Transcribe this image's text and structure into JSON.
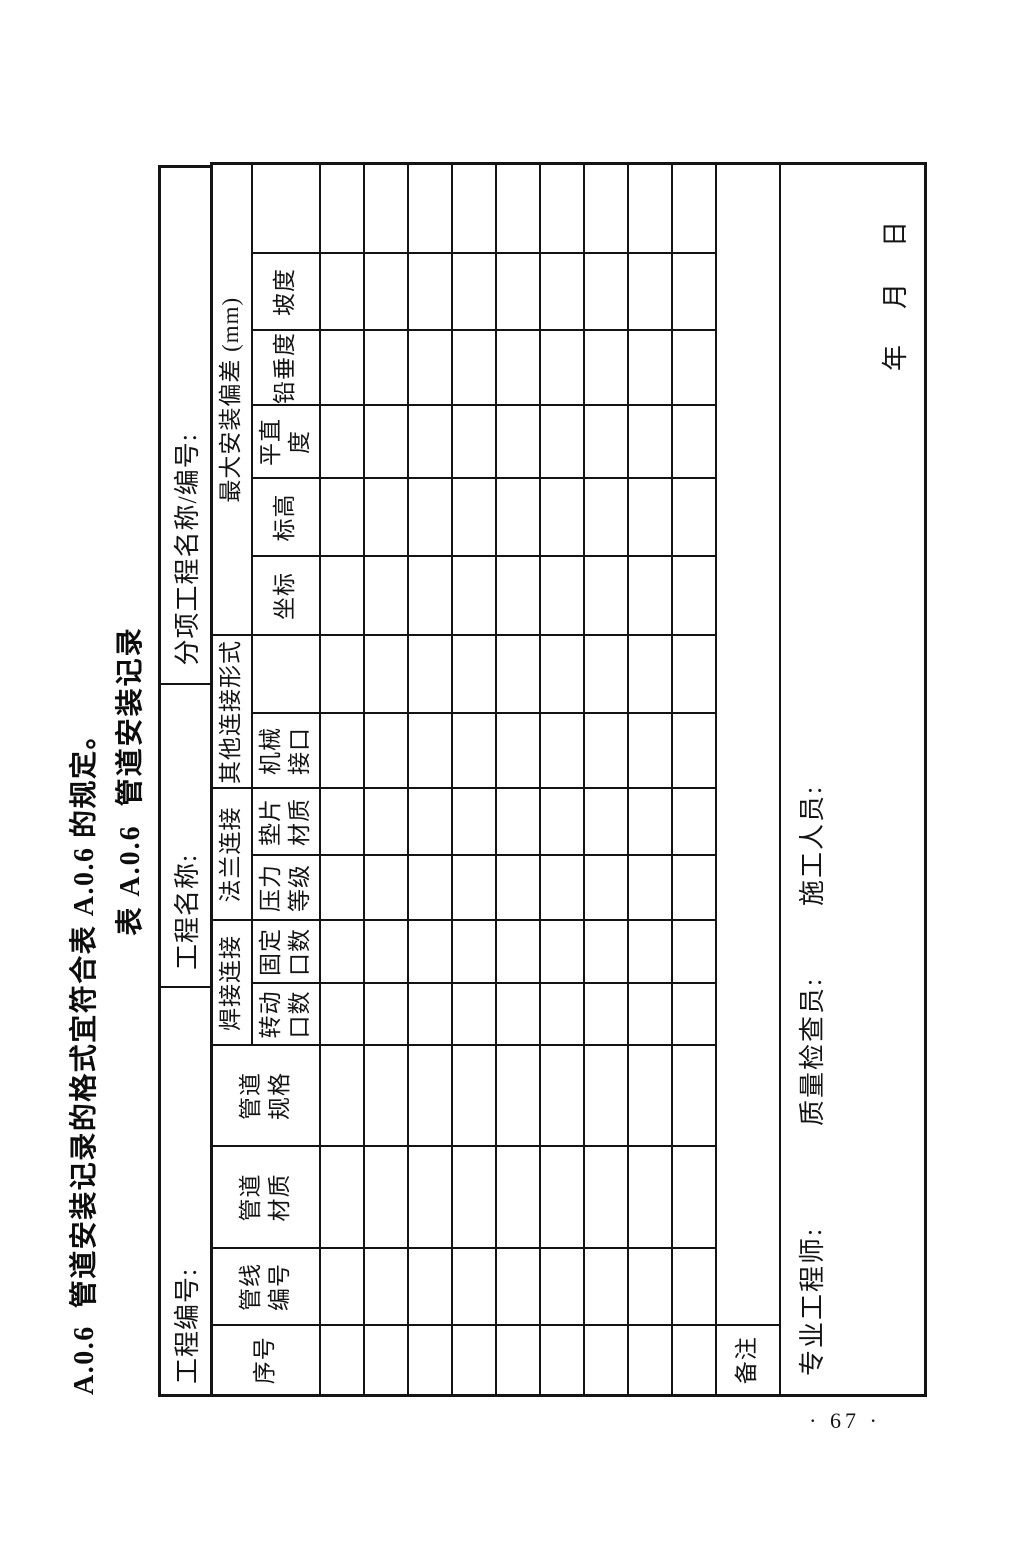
{
  "page": {
    "heading": "A.0.6  管道安装记录的格式宜符合表 A.0.6 的规定。",
    "caption": "表 A.0.6  管道安装记录",
    "page_number": "· 67 ·"
  },
  "form_header": {
    "project_no_label": "工程编号:",
    "project_name_label": "工程名称:",
    "subproject_label": "分项工程名称/编号:"
  },
  "table": {
    "col_headers": {
      "serial": "序号",
      "pipeline_no": "管线\n编号",
      "pipe_material": "管道\n材质",
      "pipe_spec": "管道\n规格"
    },
    "groups": {
      "weld": {
        "label": "焊接连接",
        "sub1": "转动\n口数",
        "sub2": "固定\n口数"
      },
      "flange": {
        "label": "法兰连接",
        "sub1": "压力\n等级",
        "sub2": "垫片\n材质"
      },
      "other": {
        "label": "其他连接形式",
        "sub1": "机械\n接口",
        "sub2": ""
      },
      "deviation": {
        "label": "最大安装偏差 (mm)",
        "subs": [
          "坐标",
          "标高",
          "平直度",
          "铅垂度",
          "坡度",
          ""
        ]
      }
    },
    "empty_row_count": 9,
    "empty_column_count": 16,
    "remark_label": "备注",
    "footer": {
      "engineer_label": "专业工程师:",
      "inspector_label": "质量检查员:",
      "worker_label": "施工人员:",
      "date_label": "年    月    日"
    }
  }
}
